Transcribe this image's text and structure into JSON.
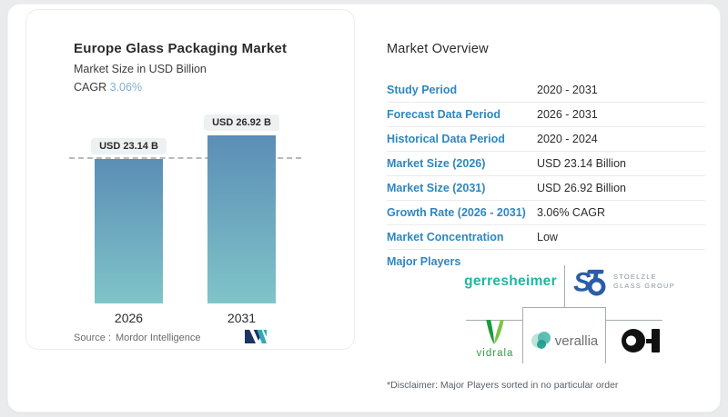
{
  "left_panel": {
    "title": "Europe Glass Packaging Market",
    "subtitle": "Market Size in USD Billion",
    "cagr_label": "CAGR",
    "cagr_value": "3.06%",
    "source_label": "Source :",
    "source_value": "Mordor Intelligence"
  },
  "chart_data": {
    "type": "bar",
    "categories": [
      "2026",
      "2031"
    ],
    "values": [
      23.14,
      26.92
    ],
    "bar_labels": [
      "USD 23.14 B",
      "USD 26.92 B"
    ],
    "title": "Europe Glass Packaging Market",
    "ylabel": "Market Size in USD Billion",
    "ylim": [
      0,
      26.92
    ],
    "reference_line": {
      "at_value": 23.14,
      "style": "dashed",
      "color": "#b7bbbd"
    },
    "bar_gradient": [
      "#5b8eb5",
      "#80c4c9"
    ],
    "legend": "none",
    "grid": "off"
  },
  "overview": {
    "title": "Market Overview",
    "rows": [
      {
        "label": "Study Period",
        "value": "2020 - 2031"
      },
      {
        "label": "Forecast Data Period",
        "value": "2026 - 2031"
      },
      {
        "label": "Historical Data Period",
        "value": "2020 - 2024"
      },
      {
        "label": "Market Size (2026)",
        "value": "USD 23.14 Billion"
      },
      {
        "label": "Market Size (2031)",
        "value": "USD 26.92 Billion"
      },
      {
        "label": "Growth Rate (2026 - 2031)",
        "value": "3.06% CAGR"
      },
      {
        "label": "Market Concentration",
        "value": "Low"
      }
    ],
    "major_players_label": "Major Players",
    "disclaimer": "*Disclaimer: Major Players sorted in no particular order"
  },
  "players": {
    "gerresheimer": {
      "name": "Gerresheimer",
      "text": "gerresheimer",
      "color": "#1fb5a3"
    },
    "stoelzle": {
      "name": "Stoelzle Glass Group",
      "glyph": "S",
      "line1": "STOELZLE",
      "line2": "GLASS GROUP",
      "color": "#2b5ca8"
    },
    "vidrala": {
      "name": "Vidrala",
      "text": "vidrala",
      "color": "#2f9e45"
    },
    "verallia": {
      "name": "Verallia",
      "text": "verallia",
      "color": "#45b5a6"
    },
    "oi": {
      "name": "O-I",
      "color": "#111111"
    }
  },
  "colors": {
    "label_blue": "#2e87c1",
    "cagr_blue": "#7fb0d2",
    "bar_top": "#5b8eb5",
    "bar_bottom": "#80c4c9",
    "pill_bg": "#eef1f1",
    "line_gray": "#a7acaf"
  }
}
